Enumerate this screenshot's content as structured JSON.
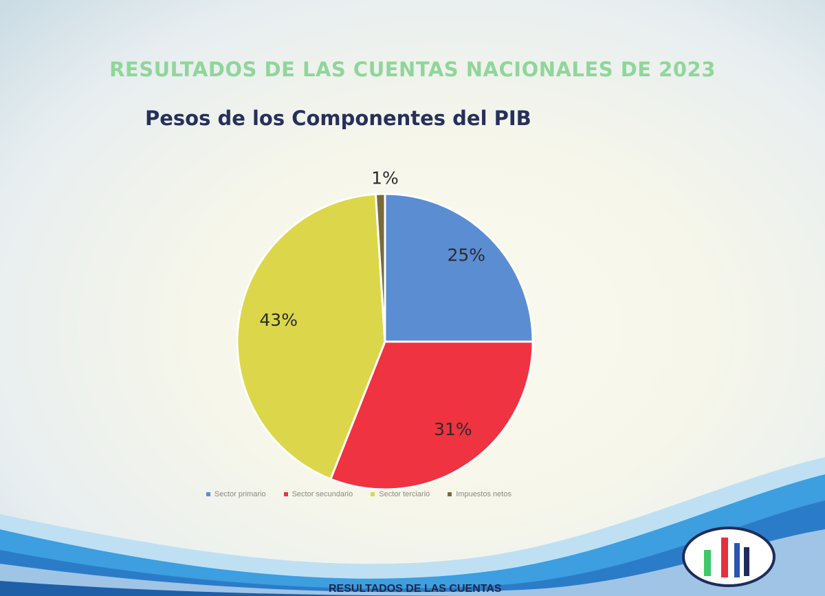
{
  "slide": {
    "main_title": "RESULTADOS DE LAS CUENTAS NACIONALES DE 2023",
    "footer_text": "RESULTADOS DE LAS CUENTAS"
  },
  "colors": {
    "title_green": "#8fd69a",
    "chart_title": "#26305a",
    "sector_primario": "#5b8dd3",
    "sector_secundario": "#ef3340",
    "sector_terciario": "#dcd74a",
    "impuestos_netos": "#7a6a3a"
  },
  "chart_data": {
    "type": "pie",
    "title": "Pesos de los Componentes del PIB",
    "slices": [
      {
        "name": "Sector primario",
        "value": 25,
        "label": "25%",
        "color": "#5b8dd3"
      },
      {
        "name": "Sector secundario",
        "value": 31,
        "label": "31%",
        "color": "#ef3340"
      },
      {
        "name": "Sector terciario",
        "value": 43,
        "label": "43%",
        "color": "#dcd74a"
      },
      {
        "name": "Impuestos netos",
        "value": 1,
        "label": "1%",
        "color": "#7a6a3a"
      }
    ],
    "legend": [
      "Sector primario",
      "Sector secundario",
      "Sector terciario",
      "Impuestos netos"
    ],
    "legend_position": "bottom"
  }
}
